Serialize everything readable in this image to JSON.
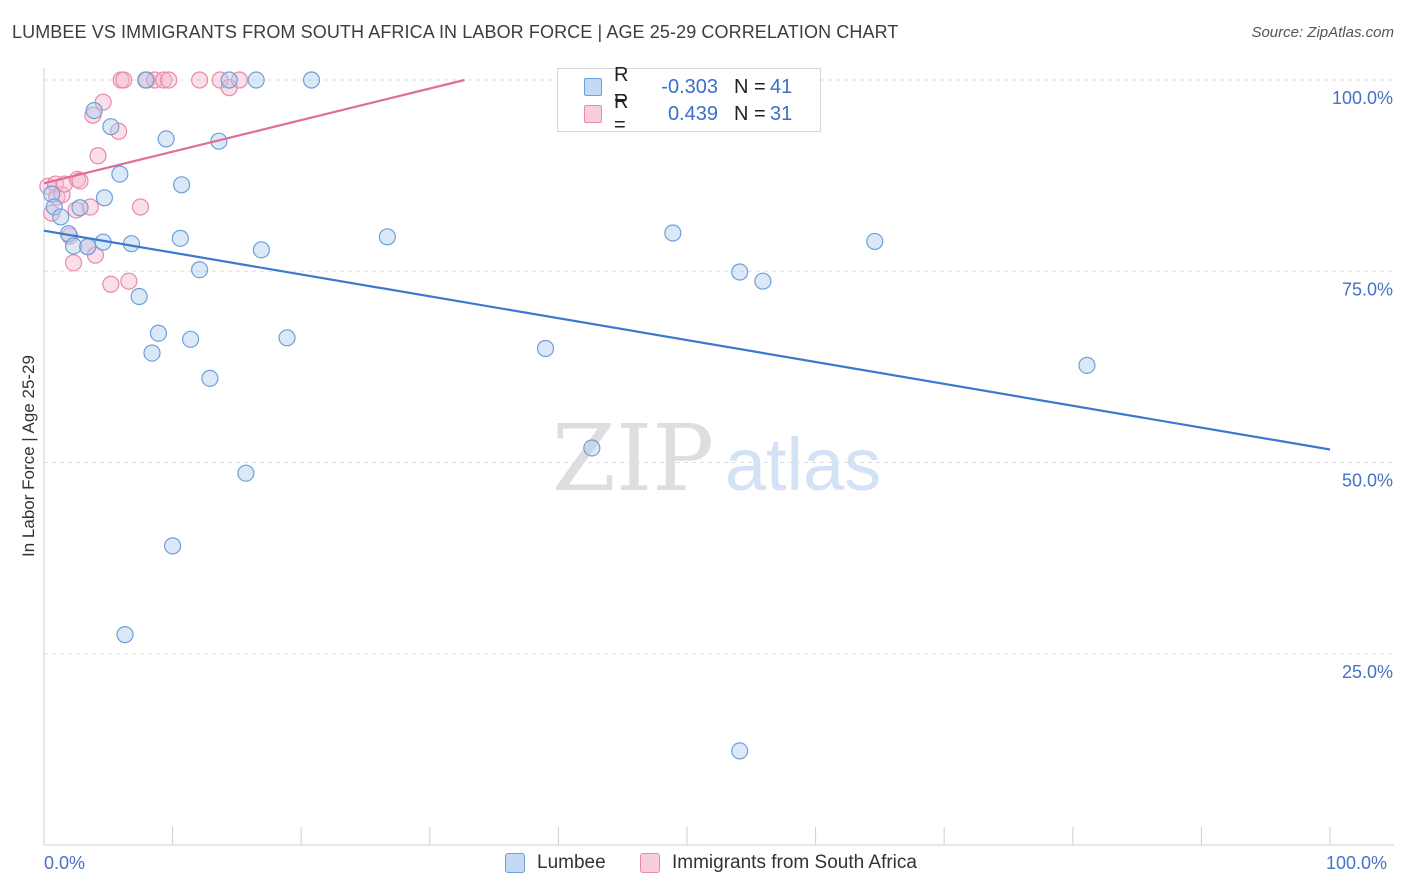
{
  "title": "LUMBEE VS IMMIGRANTS FROM SOUTH AFRICA IN LABOR FORCE | AGE 25-29 CORRELATION CHART",
  "source": "Source: ZipAtlas.com",
  "watermark": {
    "zip": "ZIP",
    "atlas": "atlas"
  },
  "legend": {
    "r_label": "R =",
    "n_label": "N =",
    "rows": [
      {
        "name": "Lumbee",
        "r": "-0.303",
        "n": "41"
      },
      {
        "name": "Immigrants from South Africa",
        "r": "0.439",
        "n": "31"
      }
    ]
  },
  "colors": {
    "lumbee_fill": "#aecbf0",
    "lumbee_stroke": "#6f9fd8",
    "lumbee_line": "#3b78cf",
    "sa_fill": "#f6b9cc",
    "sa_stroke": "#e88aa8",
    "sa_line": "#e06d94",
    "axis_label": "#4472c4",
    "grid": "#dddddd"
  },
  "chart_data": {
    "type": "scatter",
    "title": "LUMBEE VS IMMIGRANTS FROM SOUTH AFRICA IN LABOR FORCE | AGE 25-29 CORRELATION CHART",
    "xlabel": "",
    "ylabel": "In Labor Force | Age 25-29",
    "xlim": [
      0,
      100
    ],
    "ylim": [
      0,
      100
    ],
    "x_tick_labels": [
      "0.0%",
      "100.0%"
    ],
    "y_ticks": [
      25,
      50,
      75,
      100
    ],
    "y_tick_labels": [
      "25.0%",
      "50.0%",
      "75.0%",
      "100.0%"
    ],
    "grid": true,
    "legend_position": "top-center",
    "series": [
      {
        "name": "Lumbee",
        "r": -0.303,
        "n": 41,
        "trend": {
          "x": [
            0,
            100
          ],
          "y": [
            80.3,
            51.7
          ]
        },
        "points": [
          [
            0.6,
            85.1
          ],
          [
            0.8,
            83.4
          ],
          [
            1.3,
            82.1
          ],
          [
            1.9,
            79.9
          ],
          [
            2.3,
            78.3
          ],
          [
            2.8,
            83.3
          ],
          [
            3.4,
            78.2
          ],
          [
            3.9,
            96.0
          ],
          [
            4.6,
            78.8
          ],
          [
            4.7,
            84.6
          ],
          [
            5.2,
            93.9
          ],
          [
            5.9,
            87.7
          ],
          [
            6.3,
            27.5
          ],
          [
            6.8,
            78.6
          ],
          [
            7.4,
            71.7
          ],
          [
            7.9,
            100
          ],
          [
            8.4,
            64.3
          ],
          [
            8.9,
            66.9
          ],
          [
            9.5,
            92.3
          ],
          [
            10.0,
            39.1
          ],
          [
            10.6,
            79.3
          ],
          [
            10.7,
            86.3
          ],
          [
            11.4,
            66.1
          ],
          [
            12.1,
            75.2
          ],
          [
            12.9,
            61.0
          ],
          [
            13.6,
            92.0
          ],
          [
            14.4,
            100
          ],
          [
            15.7,
            48.6
          ],
          [
            16.5,
            100
          ],
          [
            16.9,
            77.8
          ],
          [
            18.9,
            66.3
          ],
          [
            20.8,
            100
          ],
          [
            26.7,
            79.5
          ],
          [
            39.0,
            64.9
          ],
          [
            42.6,
            51.9
          ],
          [
            48.9,
            80.0
          ],
          [
            54.1,
            74.9
          ],
          [
            54.1,
            12.3
          ],
          [
            55.9,
            73.7
          ],
          [
            64.6,
            78.9
          ],
          [
            81.1,
            62.7
          ]
        ]
      },
      {
        "name": "Immigrants from South Africa",
        "r": 0.439,
        "n": 31,
        "trend": {
          "x": [
            0,
            32.7
          ],
          "y": [
            86.5,
            100
          ]
        },
        "points": [
          [
            0.3,
            86.1
          ],
          [
            0.6,
            82.6
          ],
          [
            0.9,
            86.4
          ],
          [
            1.0,
            84.7
          ],
          [
            1.4,
            85.0
          ],
          [
            1.6,
            86.4
          ],
          [
            2.0,
            79.6
          ],
          [
            2.3,
            76.1
          ],
          [
            2.5,
            83.0
          ],
          [
            2.6,
            87.0
          ],
          [
            2.8,
            86.8
          ],
          [
            3.4,
            78.2
          ],
          [
            3.6,
            83.4
          ],
          [
            3.8,
            95.4
          ],
          [
            4.0,
            77.1
          ],
          [
            4.2,
            90.1
          ],
          [
            4.6,
            97.1
          ],
          [
            5.2,
            73.3
          ],
          [
            5.8,
            93.3
          ],
          [
            6.0,
            100
          ],
          [
            6.2,
            100
          ],
          [
            6.6,
            73.7
          ],
          [
            7.5,
            83.4
          ],
          [
            8.0,
            100
          ],
          [
            8.6,
            100
          ],
          [
            9.3,
            100
          ],
          [
            9.7,
            100
          ],
          [
            12.1,
            100
          ],
          [
            13.7,
            100
          ],
          [
            14.4,
            99.0
          ],
          [
            15.2,
            100
          ]
        ]
      }
    ]
  }
}
